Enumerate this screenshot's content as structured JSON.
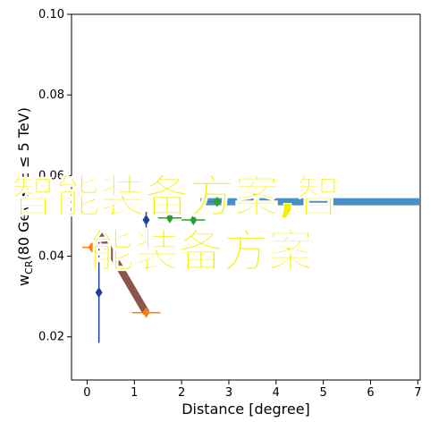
{
  "chart_data": {
    "type": "scatter",
    "x_label": "Distance [degree]",
    "y_label_main": "w",
    "y_label_sub": "CR",
    "y_label_rest": "(80 GeV ≤ E ≤ 5 TeV)",
    "xlim": [
      -0.33,
      7.05
    ],
    "ylim": [
      0.0093,
      0.1
    ],
    "xticks": [
      0,
      1,
      2,
      3,
      4,
      5,
      6,
      7
    ],
    "yticks": [
      0.02,
      0.04,
      0.06,
      {
        "value": 0.08,
        "label": "0.08"
      },
      {
        "value": 0.1,
        "label": "0.10"
      }
    ],
    "series": [
      {
        "marker": "line",
        "color": "#4a90c4",
        "width": 8,
        "x": [
          2.4,
          7.05
        ],
        "values": [
          0.0535,
          0.0535
        ]
      },
      {
        "marker": "line",
        "color": "#8c564b",
        "width": 8,
        "x": [
          0.25,
          1.25
        ],
        "values": [
          0.046,
          0.026
        ]
      },
      {
        "marker": "point",
        "color": "#1f3fa0",
        "x": [
          0.25,
          1.25
        ],
        "values": [
          0.031,
          0.049
        ],
        "yerr": [
          0.0125,
          0.002
        ]
      },
      {
        "marker": "point",
        "color": "#ff7f0e",
        "x": [
          0.1,
          1.25
        ],
        "values": [
          0.0422,
          0.026
        ],
        "xerr": [
          0.2,
          0.3
        ]
      },
      {
        "marker": "point",
        "color": "#2ca02c",
        "x": [
          1.75,
          2.25,
          2.75
        ],
        "values": [
          0.0495,
          0.049,
          0.0535
        ],
        "xerr": [
          0.25,
          0.25,
          0.25
        ]
      }
    ],
    "overlay": [
      "智能装备方案,智",
      "能装备方案"
    ]
  }
}
